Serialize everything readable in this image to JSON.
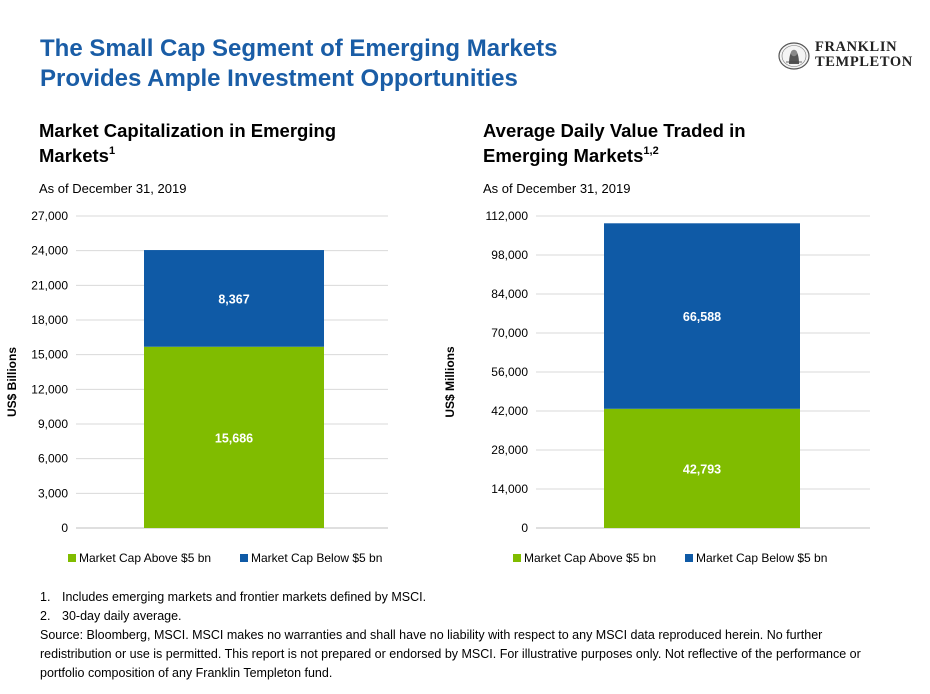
{
  "title": {
    "line1": "The Small Cap Segment of Emerging Markets",
    "line2": "Provides Ample Investment Opportunities"
  },
  "logo": {
    "line1": "FRANKLIN",
    "line2": "TEMPLETON"
  },
  "charts": [
    {
      "title_line1": "Market Capitalization in Emerging",
      "title_line2": "Markets",
      "title_sup": "1",
      "as_of": "As of December 31, 2019"
    },
    {
      "title_line1": "Average Daily Value Traded in",
      "title_line2": "Emerging Markets",
      "title_sup": "1,2",
      "as_of": "As of December 31, 2019"
    }
  ],
  "chart_data": [
    {
      "type": "bar",
      "stacked": true,
      "ylabel": "US$ Billions",
      "ylim": [
        0,
        27000
      ],
      "yticks": [
        "0",
        "3,000",
        "6,000",
        "9,000",
        "12,000",
        "15,000",
        "18,000",
        "21,000",
        "24,000",
        "27,000"
      ],
      "yticks_values": [
        0,
        3000,
        6000,
        9000,
        12000,
        15000,
        18000,
        21000,
        24000,
        27000
      ],
      "grid": true,
      "legend_position": "bottom",
      "series": [
        {
          "name": "Market Cap Above $5 bn",
          "values": [
            15686
          ],
          "label": "15,686",
          "color": "#80bc00"
        },
        {
          "name": "Market Cap Below $5 bn",
          "values": [
            8367
          ],
          "label": "8,367",
          "color": "#0f5aa6"
        }
      ]
    },
    {
      "type": "bar",
      "stacked": true,
      "ylabel": "US$ Millions",
      "ylim": [
        0,
        112000
      ],
      "yticks": [
        "0",
        "14,000",
        "28,000",
        "42,000",
        "56,000",
        "70,000",
        "84,000",
        "98,000",
        "112,000"
      ],
      "yticks_values": [
        0,
        14000,
        28000,
        42000,
        56000,
        70000,
        84000,
        98000,
        112000
      ],
      "grid": true,
      "legend_position": "bottom",
      "series": [
        {
          "name": "Market Cap Above $5 bn",
          "values": [
            42793
          ],
          "label": "42,793",
          "color": "#80bc00"
        },
        {
          "name": "Market Cap Below $5 bn",
          "values": [
            66588
          ],
          "label": "66,588",
          "color": "#0f5aa6"
        }
      ]
    }
  ],
  "footnotes": {
    "fn1_num": "1.",
    "fn1_text": "Includes emerging markets and frontier markets defined by MSCI.",
    "fn2_num": "2.",
    "fn2_text": "30-day daily average.",
    "source_line1": "Source: Bloomberg, MSCI. MSCI makes no warranties and shall have no liability with respect to any MSCI data reproduced herein. No further",
    "source_line2": "redistribution or use is permitted. This report is not prepared or endorsed by MSCI. For illustrative purposes only. Not reflective of the performance or",
    "source_line3": "portfolio composition of any Franklin Templeton fund."
  }
}
